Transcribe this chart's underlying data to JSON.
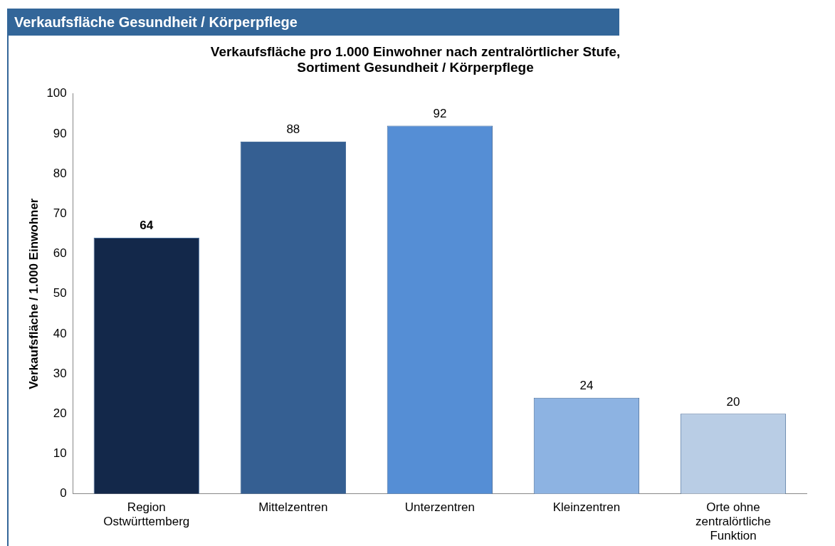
{
  "chart_data": {
    "type": "bar",
    "title": "Verkaufsfläche pro 1.000 Einwohner nach zentralörtlicher Stufe,\nSortiment Gesundheit / Körperpflege",
    "ylabel": "Verkaufsfläche / 1.000 Einwohner",
    "annotations": [
      "Verkaufsfläche Gesundheit / Körperpflege"
    ],
    "categories": [
      "Region Ostwürttemberg",
      "Mittelzentren",
      "Unterzentren",
      "Kleinzentren",
      "Orte ohne zentralörtliche Funktion"
    ],
    "values": [
      64,
      88,
      92,
      24,
      20
    ],
    "colors": [
      "#13284a",
      "#355f92",
      "#558ed5",
      "#8db3e2",
      "#b9cde5"
    ],
    "ylim": [
      0,
      100
    ],
    "yticks": [
      0,
      10,
      20,
      30,
      40,
      50,
      60,
      70,
      80,
      90,
      100
    ],
    "grid": false,
    "legend": false,
    "data_labels": true
  }
}
